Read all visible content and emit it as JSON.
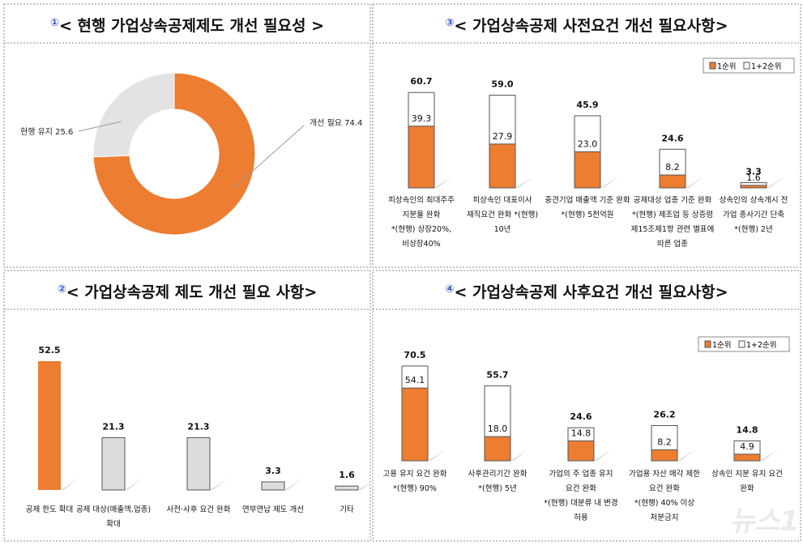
{
  "colors": {
    "primary": "#ed7d31",
    "secondary": "#ffffff",
    "gray": "#dcdcdc",
    "border": "#555555"
  },
  "watermark": "뉴스1",
  "chart_data": [
    {
      "id": "p1",
      "type": "pie",
      "donut": true,
      "num": "①",
      "title": "< 현행 가업상속공제제도 개선 필요성 >",
      "slices": [
        {
          "label": "개선 필요",
          "value": 74.4,
          "color": "#ed7d31"
        },
        {
          "label": "현행 유지",
          "value": 25.6,
          "color": "#e3e3e3"
        }
      ]
    },
    {
      "id": "p3",
      "type": "bar",
      "num": "③",
      "title": "< 가업상속공제 사전요건 개선 필요사항>",
      "legend": [
        "1순위",
        "1+2순위"
      ],
      "legend_position": "top-right",
      "categories": [
        [
          "피상속인의 최대주주",
          "지분율 완화",
          "*(현행) 상장20%,",
          "비상장40%"
        ],
        [
          "피상속인 대표이사",
          "재직요건 완화 *(현행)",
          "10년"
        ],
        [
          "중견기업 매출액 기준 완화",
          "*(현행) 5천억원"
        ],
        [
          "공제대상 업종 기준 완화",
          "*(현행) 제조업 등 상증령",
          "제15조제1항 관련 별표에",
          "따른 업종"
        ],
        [
          "상속인의 상속개시 전",
          "가업 종사기간 단축",
          "*(현행) 2년"
        ]
      ],
      "series": [
        {
          "name": "1순위",
          "values": [
            39.3,
            27.9,
            23.0,
            8.2,
            1.6
          ]
        },
        {
          "name": "1+2순위",
          "values": [
            60.7,
            59.0,
            45.9,
            24.6,
            3.3
          ]
        }
      ]
    },
    {
      "id": "p2",
      "type": "bar",
      "num": "②",
      "title": "< 가업상속공제 제도 개선 필요 사항>",
      "categories": [
        [
          "공제 한도 확대"
        ],
        [
          "공제 대상(매출액,업종)",
          "확대"
        ],
        [
          "사전·사후 요건 완화"
        ],
        [
          "연부연납 제도 개선"
        ],
        [
          "기타"
        ]
      ],
      "values": [
        52.5,
        21.3,
        21.3,
        3.3,
        1.6
      ]
    },
    {
      "id": "p4",
      "type": "bar",
      "num": "④",
      "title": "< 가업상속공제 사후요건 개선 필요사항>",
      "legend": [
        "1순위",
        "1+2순위"
      ],
      "legend_position": "top-right",
      "categories": [
        [
          "고용 유지 요건 완화",
          "*(현행) 90%"
        ],
        [
          "사후관리기간 완화",
          "*(현행) 5년"
        ],
        [
          "가업의 주 업종 유지",
          "요건 완화",
          "*(현행) 대분류 내 변경",
          "허용"
        ],
        [
          "가업용 자산 매각 제한",
          "요건 완화",
          "*(현행) 40% 이상",
          "처분금지"
        ],
        [
          "상속인 지분 유지 요건",
          "완화"
        ]
      ],
      "series": [
        {
          "name": "1순위",
          "values": [
            54.1,
            18.0,
            14.8,
            8.2,
            4.9
          ]
        },
        {
          "name": "1+2순위",
          "values": [
            70.5,
            55.7,
            24.6,
            26.2,
            14.8
          ]
        }
      ]
    }
  ]
}
